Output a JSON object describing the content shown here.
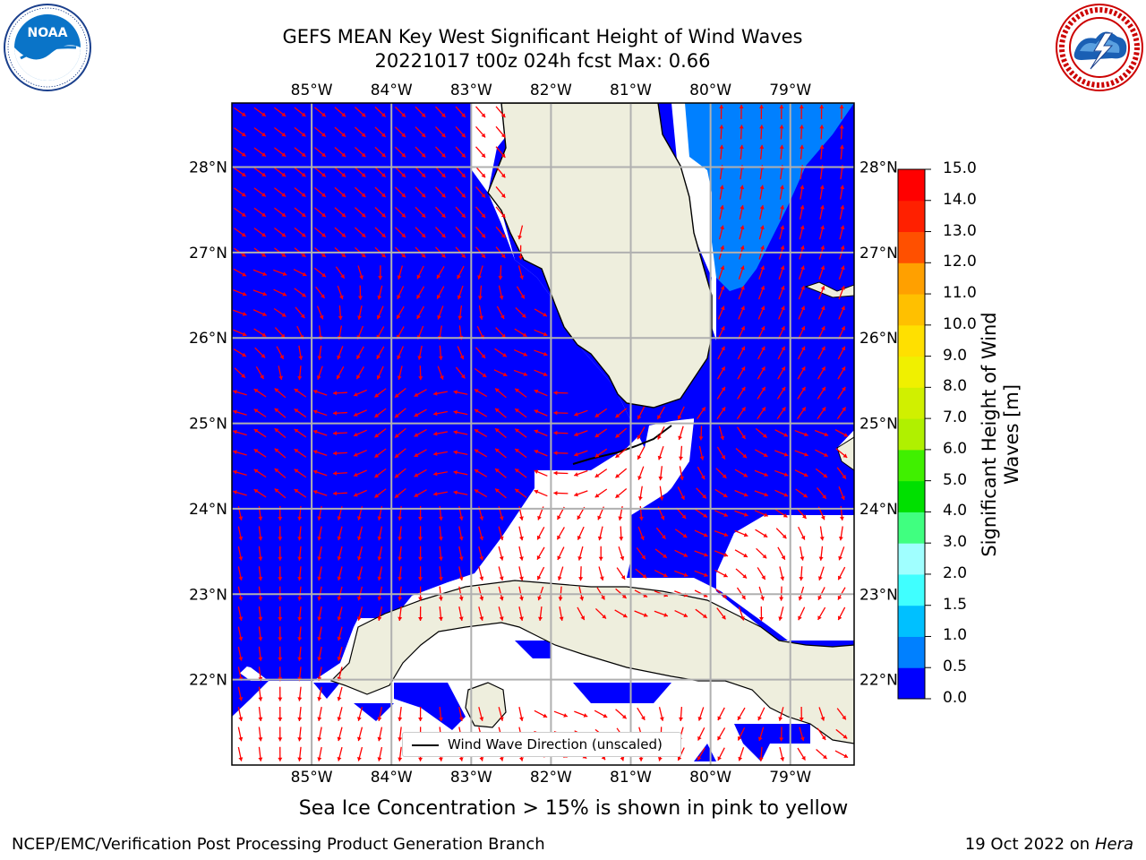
{
  "header": {
    "title_line1": "GEFS MEAN Key West Significant Height of Wind Waves",
    "title_line2": "20221017 t00z 024h fcst   Max: 0.66"
  },
  "logos": {
    "left": {
      "name": "noaa-logo",
      "text": "NOAA",
      "ring_text": "NATIONAL OCEANIC AND ATMOSPHERIC ADMINISTRATION · U.S. DEPARTMENT OF COMMERCE"
    },
    "right": {
      "name": "nws-logo",
      "ring_text": "NATIONAL WEATHER SERVICE"
    }
  },
  "map": {
    "lon_ticks": [
      "85°W",
      "84°W",
      "83°W",
      "82°W",
      "81°W",
      "80°W",
      "79°W"
    ],
    "lat_ticks": [
      "28°N",
      "27°N",
      "26°N",
      "25°N",
      "24°N",
      "23°N",
      "22°N"
    ],
    "lon_values": [
      -85,
      -84,
      -83,
      -82,
      -81,
      -80,
      -79
    ],
    "lat_values": [
      28,
      27,
      26,
      25,
      24,
      23,
      22
    ],
    "extent": {
      "lon_min": -86.0,
      "lon_max": -78.2,
      "lat_min": 21.0,
      "lat_max": 28.75
    },
    "colors": {
      "ocean_low": "#0000ff",
      "ocean_mid": "#0080ff",
      "land": "#eeeedd",
      "arrow": "#ff0000",
      "grid": "#b0b0b0"
    },
    "legend_label": "Wind Wave Direction (unscaled)"
  },
  "colorbar": {
    "title_line1": "Significant Height of Wind",
    "title_line2": "Waves [m]",
    "levels": [
      "15.0",
      "14.0",
      "13.0",
      "12.0",
      "11.0",
      "10.0",
      "9.0",
      "8.0",
      "7.0",
      "6.0",
      "5.0",
      "4.0",
      "3.0",
      "2.0",
      "1.5",
      "1.0",
      "0.5",
      "0.0"
    ],
    "colors_bottom_to_top": [
      "#0000ff",
      "#0080ff",
      "#00c0ff",
      "#00f0ff",
      "#40ffff",
      "#a0ffff",
      "#40ff80",
      "#00e000",
      "#40f000",
      "#80f000",
      "#b0f000",
      "#d0f000",
      "#f0f000",
      "#ffe000",
      "#ffc000",
      "#ffa000",
      "#ff8000",
      "#ff5000",
      "#ff2000",
      "#ff0000"
    ]
  },
  "chart_data": {
    "type": "heatmap",
    "title": "GEFS MEAN Key West Significant Height of Wind Waves",
    "subtitle": "20221017 t00z 024h fcst   Max: 0.66",
    "max_value": 0.66,
    "xlim": [
      -86.0,
      -78.2
    ],
    "ylim": [
      21.0,
      28.75
    ],
    "zlim": [
      0.0,
      15.0
    ]
  },
  "notes": {
    "sea_ice": "Sea Ice Concentration > 15% is shown in pink to yellow"
  },
  "footer": {
    "left": "NCEP/EMC/Verification Post Processing Product Generation Branch",
    "right_prefix": "19 Oct 2022 on ",
    "right_host": "Hera"
  }
}
